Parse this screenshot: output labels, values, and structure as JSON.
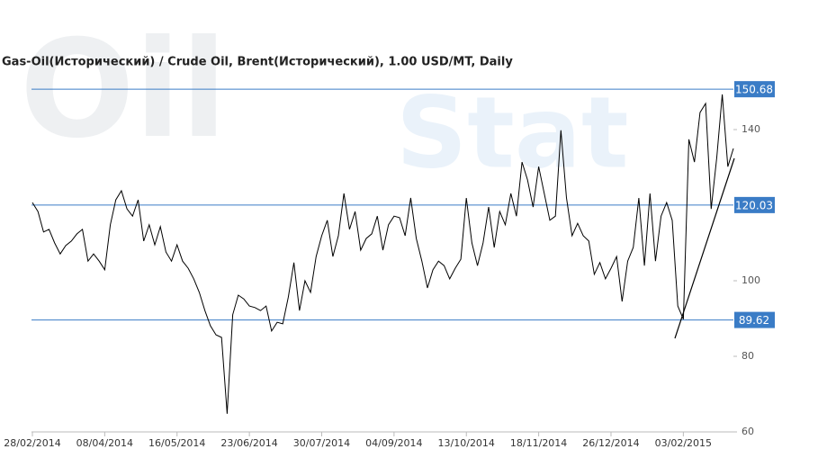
{
  "chart_data": {
    "type": "line",
    "title": "Gas-Oil(Исторический) / Crude Oil, Brent(Исторический), 1.00 USD/MT, Daily",
    "watermark": [
      "Oil",
      "Stat"
    ],
    "color": "#000000",
    "values": [
      120.7,
      118.3,
      112.9,
      113.6,
      110.0,
      107.1,
      109.3,
      110.5,
      112.4,
      113.6,
      105.2,
      107.1,
      105.2,
      102.9,
      114.8,
      121.4,
      123.8,
      119.0,
      117.1,
      121.4,
      110.5,
      114.8,
      109.5,
      114.3,
      107.6,
      105.2,
      109.5,
      105.2,
      103.3,
      100.5,
      96.9,
      92.1,
      88.1,
      85.7,
      85.0,
      64.8,
      91.0,
      96.2,
      95.2,
      93.3,
      92.9,
      92.1,
      93.3,
      86.7,
      89.0,
      88.6,
      95.7,
      104.8,
      92.1,
      100.0,
      96.9,
      106.4,
      111.9,
      116.0,
      106.4,
      111.9,
      123.1,
      113.6,
      118.3,
      108.1,
      111.2,
      112.4,
      117.1,
      108.1,
      114.8,
      117.1,
      116.7,
      111.9,
      121.9,
      111.2,
      105.2,
      98.1,
      102.9,
      105.2,
      104.0,
      100.5,
      103.3,
      105.7,
      121.9,
      110.0,
      104.0,
      110.0,
      119.5,
      108.8,
      118.3,
      114.8,
      123.1,
      117.1,
      131.4,
      126.7,
      119.5,
      130.2,
      123.1,
      116.0,
      117.1,
      139.8,
      121.9,
      111.9,
      115.2,
      111.9,
      110.5,
      101.7,
      104.8,
      100.5,
      103.3,
      106.4,
      94.5,
      105.2,
      108.8,
      121.9,
      104.0,
      123.1,
      105.2,
      117.1,
      120.7,
      116.0,
      93.3,
      89.8,
      137.4,
      131.4,
      144.5,
      146.9,
      119.0,
      132.6,
      149.3,
      130.2,
      135.0
    ],
    "xlim": [
      0,
      126
    ],
    "xticks": [
      {
        "value": 0,
        "label": "28/02/2014"
      },
      {
        "value": 13,
        "label": "08/04/2014"
      },
      {
        "value": 26,
        "label": "16/05/2014"
      },
      {
        "value": 39,
        "label": "23/06/2014"
      },
      {
        "value": 52,
        "label": "30/07/2014"
      },
      {
        "value": 65,
        "label": "04/09/2014"
      },
      {
        "value": 78,
        "label": "13/10/2014"
      },
      {
        "value": 91,
        "label": "18/11/2014"
      },
      {
        "value": 104,
        "label": "26/12/2014"
      },
      {
        "value": 117,
        "label": "03/02/2015"
      }
    ],
    "ylim": [
      60,
      153
    ],
    "yticks": [
      60,
      80,
      100,
      140
    ],
    "hlines": [
      150.68,
      120.03,
      89.62
    ],
    "hline_color": "#3a7cc6"
  }
}
